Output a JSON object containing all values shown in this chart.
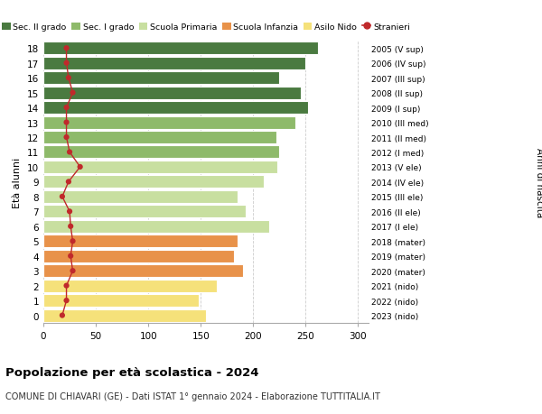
{
  "ages": [
    0,
    1,
    2,
    3,
    4,
    5,
    6,
    7,
    8,
    9,
    10,
    11,
    12,
    13,
    14,
    15,
    16,
    17,
    18
  ],
  "bar_values": [
    155,
    148,
    165,
    190,
    182,
    185,
    215,
    193,
    185,
    210,
    223,
    225,
    222,
    240,
    252,
    245,
    225,
    250,
    262
  ],
  "stranieri": [
    18,
    22,
    22,
    28,
    26,
    28,
    26,
    25,
    18,
    24,
    35,
    25,
    22,
    22,
    22,
    28,
    24,
    22,
    22
  ],
  "right_labels": [
    "2023 (nido)",
    "2022 (nido)",
    "2021 (nido)",
    "2020 (mater)",
    "2019 (mater)",
    "2018 (mater)",
    "2017 (I ele)",
    "2016 (II ele)",
    "2015 (III ele)",
    "2014 (IV ele)",
    "2013 (V ele)",
    "2012 (I med)",
    "2011 (II med)",
    "2010 (III med)",
    "2009 (I sup)",
    "2008 (II sup)",
    "2007 (III sup)",
    "2006 (IV sup)",
    "2005 (V sup)"
  ],
  "bar_colors": [
    "#f5e17a",
    "#f5e17a",
    "#f5e17a",
    "#e8924a",
    "#e8924a",
    "#e8924a",
    "#c8dfa0",
    "#c8dfa0",
    "#c8dfa0",
    "#c8dfa0",
    "#c8dfa0",
    "#8eba6a",
    "#8eba6a",
    "#8eba6a",
    "#4a7a40",
    "#4a7a40",
    "#4a7a40",
    "#4a7a40",
    "#4a7a40"
  ],
  "legend_labels": [
    "Sec. II grado",
    "Sec. I grado",
    "Scuola Primaria",
    "Scuola Infanzia",
    "Asilo Nido",
    "Stranieri"
  ],
  "legend_colors": [
    "#4a7a40",
    "#8eba6a",
    "#c8dfa0",
    "#e8924a",
    "#f5e17a",
    "#c0292b"
  ],
  "stranieri_color": "#c0292b",
  "ylabel": "Età alunni",
  "right_ylabel": "Anni di nascita",
  "title": "Popolazione per età scolastica - 2024",
  "subtitle": "COMUNE DI CHIAVARI (GE) - Dati ISTAT 1° gennaio 2024 - Elaborazione TUTTITALIA.IT",
  "xlim": [
    0,
    310
  ],
  "xticks": [
    0,
    50,
    100,
    150,
    200,
    250,
    300
  ],
  "background_color": "#ffffff",
  "grid_color": "#cccccc"
}
